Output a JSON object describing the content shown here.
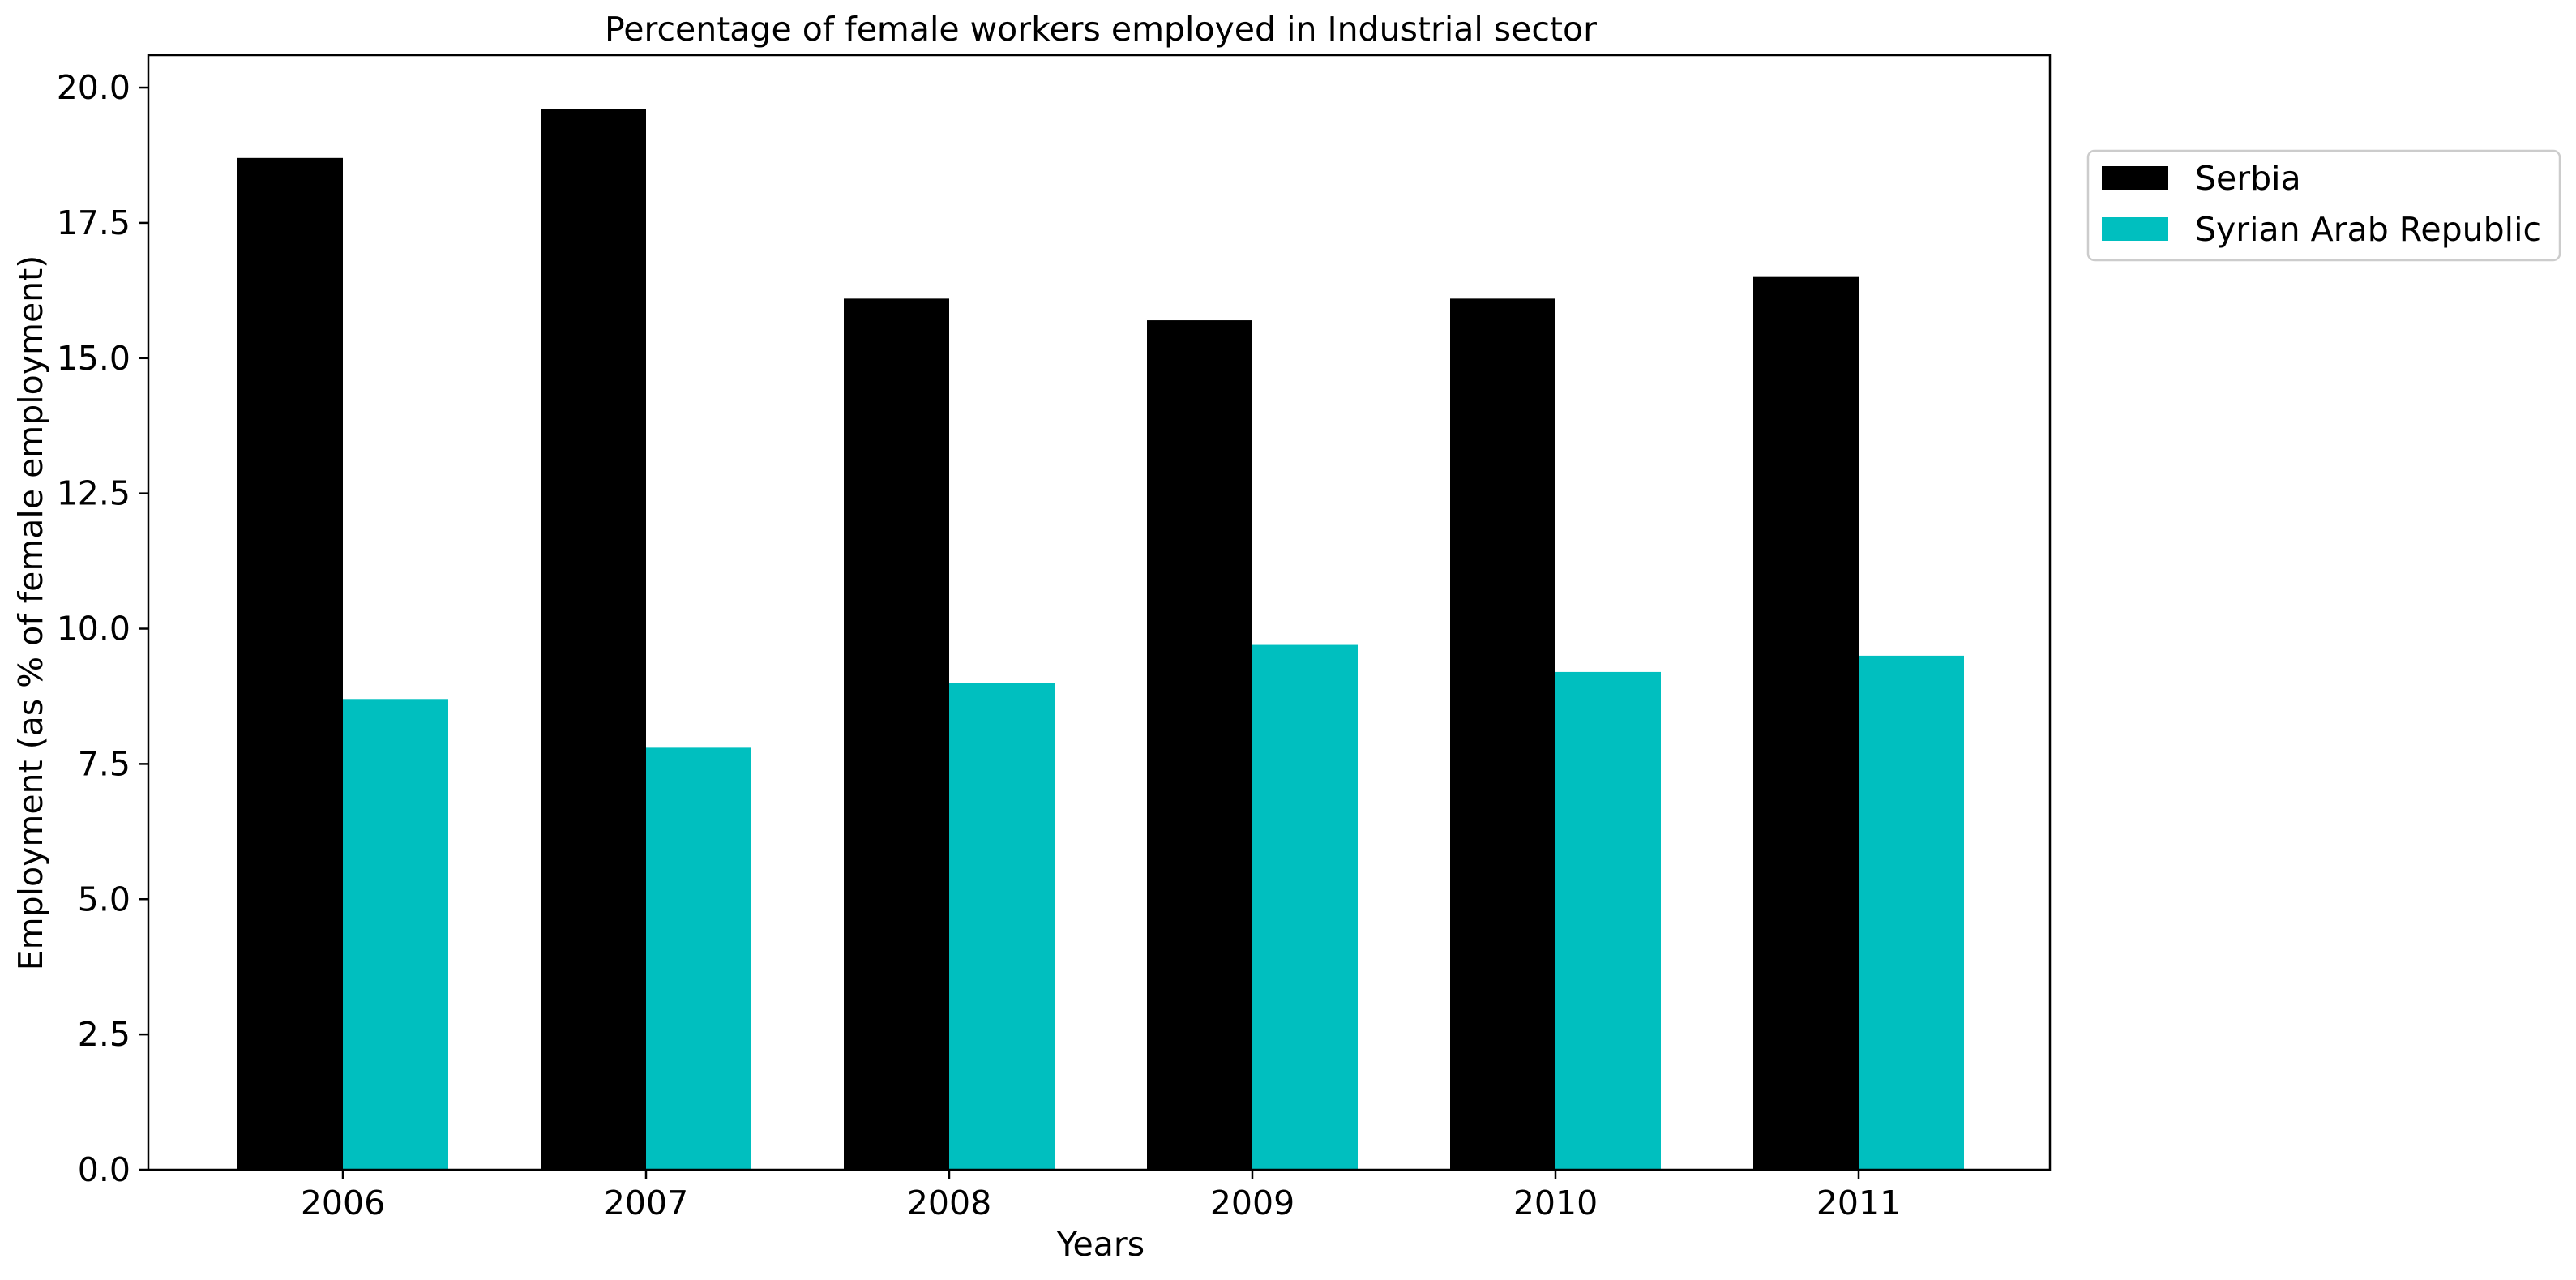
{
  "chart_data": {
    "type": "bar",
    "title": "Percentage of female workers employed in Industrial sector",
    "xlabel": "Years",
    "ylabel": "Employment (as % of female employment)",
    "categories": [
      "2006",
      "2007",
      "2008",
      "2009",
      "2010",
      "2011"
    ],
    "series": [
      {
        "name": "Serbia",
        "color": "#000000",
        "values": [
          18.7,
          19.6,
          16.1,
          15.7,
          16.1,
          16.5
        ]
      },
      {
        "name": "Syrian Arab Republic",
        "color": "#00bfbf",
        "values": [
          8.7,
          7.8,
          9.0,
          9.7,
          9.2,
          9.5
        ]
      }
    ],
    "ylim": [
      0,
      20.6
    ],
    "yticks": [
      "0.0",
      "2.5",
      "5.0",
      "7.5",
      "10.0",
      "12.5",
      "15.0",
      "17.5",
      "20.0"
    ],
    "grid": false,
    "legend_position": "outside-top-right"
  }
}
